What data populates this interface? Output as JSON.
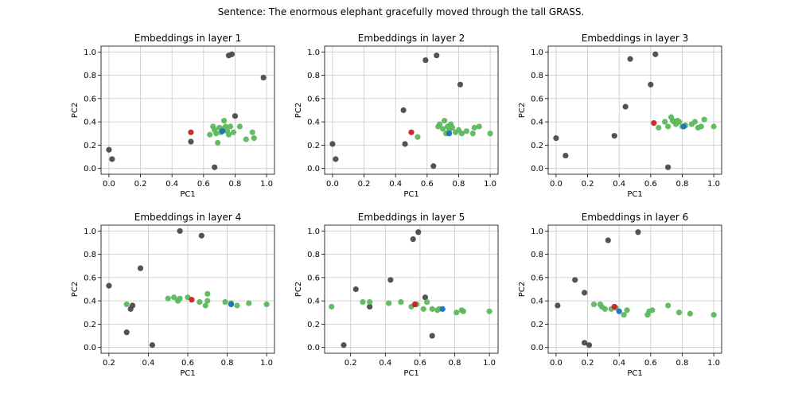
{
  "suptitle": "Sentence: The enormous elephant gracefully moved through the tall GRASS.",
  "colors": {
    "other": "#4a4a4a",
    "grass_cluster": "#5cb85c",
    "red": "#cc1f1f",
    "blue": "#1f6fbf",
    "grid": "#c8c8c8"
  },
  "chart_data": [
    {
      "type": "scatter",
      "title": "Embeddings in layer 1",
      "xlabel": "PC1",
      "ylabel": "PC2",
      "xlim": [
        -0.05,
        1.05
      ],
      "ylim": [
        -0.05,
        1.05
      ],
      "xticks": [
        "0.0",
        "0.2",
        "0.4",
        "0.6",
        "0.8",
        "1.0"
      ],
      "yticks": [
        "0.0",
        "0.2",
        "0.4",
        "0.6",
        "0.8",
        "1.0"
      ],
      "grid": true,
      "series": [
        {
          "role": "other",
          "points": [
            [
              0.0,
              0.16
            ],
            [
              0.02,
              0.08
            ],
            [
              0.52,
              0.23
            ],
            [
              0.67,
              0.01
            ],
            [
              0.76,
              0.97
            ],
            [
              0.78,
              0.98
            ],
            [
              0.8,
              0.45
            ],
            [
              0.98,
              0.78
            ]
          ]
        },
        {
          "role": "grass_cluster",
          "points": [
            [
              0.64,
              0.29
            ],
            [
              0.66,
              0.36
            ],
            [
              0.67,
              0.33
            ],
            [
              0.68,
              0.3
            ],
            [
              0.69,
              0.22
            ],
            [
              0.7,
              0.35
            ],
            [
              0.71,
              0.31
            ],
            [
              0.72,
              0.34
            ],
            [
              0.73,
              0.41
            ],
            [
              0.74,
              0.36
            ],
            [
              0.75,
              0.32
            ],
            [
              0.76,
              0.29
            ],
            [
              0.77,
              0.36
            ],
            [
              0.79,
              0.31
            ],
            [
              0.83,
              0.36
            ],
            [
              0.87,
              0.25
            ],
            [
              0.91,
              0.31
            ],
            [
              0.92,
              0.26
            ]
          ]
        },
        {
          "role": "red",
          "points": [
            [
              0.52,
              0.31
            ]
          ]
        },
        {
          "role": "blue",
          "points": [
            [
              0.72,
              0.32
            ]
          ]
        }
      ]
    },
    {
      "type": "scatter",
      "title": "Embeddings in layer 2",
      "xlabel": "PC1",
      "ylabel": "PC2",
      "xlim": [
        -0.05,
        1.05
      ],
      "ylim": [
        -0.05,
        1.05
      ],
      "xticks": [
        "0.0",
        "0.2",
        "0.4",
        "0.6",
        "0.8",
        "1.0"
      ],
      "yticks": [
        "0.0",
        "0.2",
        "0.4",
        "0.6",
        "0.8",
        "1.0"
      ],
      "grid": true,
      "series": [
        {
          "role": "other",
          "points": [
            [
              0.0,
              0.21
            ],
            [
              0.02,
              0.08
            ],
            [
              0.45,
              0.5
            ],
            [
              0.46,
              0.21
            ],
            [
              0.59,
              0.93
            ],
            [
              0.64,
              0.02
            ],
            [
              0.66,
              0.97
            ],
            [
              0.81,
              0.72
            ]
          ]
        },
        {
          "role": "grass_cluster",
          "points": [
            [
              0.54,
              0.27
            ],
            [
              0.67,
              0.36
            ],
            [
              0.68,
              0.38
            ],
            [
              0.7,
              0.34
            ],
            [
              0.71,
              0.41
            ],
            [
              0.72,
              0.3
            ],
            [
              0.73,
              0.36
            ],
            [
              0.74,
              0.33
            ],
            [
              0.75,
              0.38
            ],
            [
              0.76,
              0.35
            ],
            [
              0.78,
              0.31
            ],
            [
              0.8,
              0.33
            ],
            [
              0.82,
              0.3
            ],
            [
              0.85,
              0.32
            ],
            [
              0.89,
              0.3
            ],
            [
              0.9,
              0.35
            ],
            [
              0.93,
              0.36
            ],
            [
              1.0,
              0.3
            ]
          ]
        },
        {
          "role": "red",
          "points": [
            [
              0.5,
              0.31
            ]
          ]
        },
        {
          "role": "blue",
          "points": [
            [
              0.74,
              0.3
            ]
          ]
        }
      ]
    },
    {
      "type": "scatter",
      "title": "Embeddings in layer 3",
      "xlabel": "PC1",
      "ylabel": "PC2",
      "xlim": [
        -0.05,
        1.05
      ],
      "ylim": [
        -0.05,
        1.05
      ],
      "xticks": [
        "0.0",
        "0.2",
        "0.4",
        "0.6",
        "0.8",
        "1.0"
      ],
      "yticks": [
        "0.0",
        "0.2",
        "0.4",
        "0.6",
        "0.8",
        "1.0"
      ],
      "grid": true,
      "series": [
        {
          "role": "other",
          "points": [
            [
              0.0,
              0.26
            ],
            [
              0.06,
              0.11
            ],
            [
              0.37,
              0.28
            ],
            [
              0.44,
              0.53
            ],
            [
              0.47,
              0.94
            ],
            [
              0.6,
              0.72
            ],
            [
              0.63,
              0.98
            ],
            [
              0.71,
              0.01
            ]
          ]
        },
        {
          "role": "grass_cluster",
          "points": [
            [
              0.65,
              0.35
            ],
            [
              0.69,
              0.4
            ],
            [
              0.71,
              0.36
            ],
            [
              0.73,
              0.44
            ],
            [
              0.74,
              0.41
            ],
            [
              0.75,
              0.4
            ],
            [
              0.76,
              0.38
            ],
            [
              0.77,
              0.41
            ],
            [
              0.78,
              0.4
            ],
            [
              0.8,
              0.36
            ],
            [
              0.82,
              0.37
            ],
            [
              0.86,
              0.38
            ],
            [
              0.88,
              0.4
            ],
            [
              0.9,
              0.35
            ],
            [
              0.92,
              0.36
            ],
            [
              0.94,
              0.42
            ],
            [
              1.0,
              0.36
            ]
          ]
        },
        {
          "role": "red",
          "points": [
            [
              0.62,
              0.39
            ]
          ]
        },
        {
          "role": "blue",
          "points": [
            [
              0.81,
              0.36
            ]
          ]
        }
      ]
    },
    {
      "type": "scatter",
      "title": "Embeddings in layer 4",
      "xlabel": "PC1",
      "ylabel": "PC2",
      "xlim": [
        0.16,
        1.04
      ],
      "ylim": [
        -0.05,
        1.05
      ],
      "xticks": [
        "0.2",
        "0.4",
        "0.6",
        "0.8",
        "1.0"
      ],
      "yticks": [
        "0.0",
        "0.2",
        "0.4",
        "0.6",
        "0.8",
        "1.0"
      ],
      "grid": true,
      "series": [
        {
          "role": "other",
          "points": [
            [
              0.2,
              0.53
            ],
            [
              0.29,
              0.13
            ],
            [
              0.31,
              0.33
            ],
            [
              0.32,
              0.36
            ],
            [
              0.36,
              0.68
            ],
            [
              0.42,
              0.02
            ],
            [
              0.56,
              1.0
            ],
            [
              0.67,
              0.96
            ]
          ]
        },
        {
          "role": "grass_cluster",
          "points": [
            [
              0.29,
              0.37
            ],
            [
              0.5,
              0.42
            ],
            [
              0.53,
              0.43
            ],
            [
              0.55,
              0.4
            ],
            [
              0.56,
              0.42
            ],
            [
              0.6,
              0.43
            ],
            [
              0.66,
              0.39
            ],
            [
              0.69,
              0.36
            ],
            [
              0.7,
              0.4
            ],
            [
              0.7,
              0.46
            ],
            [
              0.79,
              0.39
            ],
            [
              0.82,
              0.38
            ],
            [
              0.85,
              0.36
            ],
            [
              0.91,
              0.38
            ],
            [
              1.0,
              0.37
            ]
          ]
        },
        {
          "role": "red",
          "points": [
            [
              0.62,
              0.41
            ]
          ]
        },
        {
          "role": "blue",
          "points": [
            [
              0.82,
              0.37
            ]
          ]
        }
      ]
    },
    {
      "type": "scatter",
      "title": "Embeddings in layer 5",
      "xlabel": "PC1",
      "ylabel": "PC2",
      "xlim": [
        0.05,
        1.05
      ],
      "ylim": [
        -0.05,
        1.05
      ],
      "xticks": [
        "0.2",
        "0.4",
        "0.6",
        "0.8",
        "1.0"
      ],
      "yticks": [
        "0.0",
        "0.2",
        "0.4",
        "0.6",
        "0.8",
        "1.0"
      ],
      "grid": true,
      "series": [
        {
          "role": "other",
          "points": [
            [
              0.16,
              0.02
            ],
            [
              0.23,
              0.5
            ],
            [
              0.31,
              0.35
            ],
            [
              0.43,
              0.58
            ],
            [
              0.56,
              0.93
            ],
            [
              0.59,
              0.99
            ],
            [
              0.63,
              0.43
            ],
            [
              0.67,
              0.1
            ]
          ]
        },
        {
          "role": "grass_cluster",
          "points": [
            [
              0.09,
              0.35
            ],
            [
              0.27,
              0.39
            ],
            [
              0.31,
              0.39
            ],
            [
              0.42,
              0.38
            ],
            [
              0.49,
              0.39
            ],
            [
              0.55,
              0.35
            ],
            [
              0.58,
              0.37
            ],
            [
              0.62,
              0.33
            ],
            [
              0.64,
              0.39
            ],
            [
              0.67,
              0.33
            ],
            [
              0.7,
              0.32
            ],
            [
              0.71,
              0.33
            ],
            [
              0.81,
              0.3
            ],
            [
              0.84,
              0.32
            ],
            [
              0.85,
              0.31
            ],
            [
              1.0,
              0.31
            ]
          ]
        },
        {
          "role": "red",
          "points": [
            [
              0.57,
              0.37
            ]
          ]
        },
        {
          "role": "blue",
          "points": [
            [
              0.73,
              0.33
            ]
          ]
        }
      ]
    },
    {
      "type": "scatter",
      "title": "Embeddings in layer 6",
      "xlabel": "PC1",
      "ylabel": "PC2",
      "xlim": [
        -0.05,
        1.05
      ],
      "ylim": [
        -0.05,
        1.05
      ],
      "xticks": [
        "0.0",
        "0.2",
        "0.4",
        "0.6",
        "0.8",
        "1.0"
      ],
      "yticks": [
        "0.0",
        "0.2",
        "0.4",
        "0.6",
        "0.8",
        "1.0"
      ],
      "grid": true,
      "series": [
        {
          "role": "other",
          "points": [
            [
              0.01,
              0.36
            ],
            [
              0.12,
              0.58
            ],
            [
              0.18,
              0.47
            ],
            [
              0.18,
              0.04
            ],
            [
              0.21,
              0.02
            ],
            [
              0.33,
              0.92
            ],
            [
              0.52,
              0.99
            ]
          ]
        },
        {
          "role": "grass_cluster",
          "points": [
            [
              0.24,
              0.37
            ],
            [
              0.28,
              0.37
            ],
            [
              0.29,
              0.35
            ],
            [
              0.31,
              0.33
            ],
            [
              0.35,
              0.33
            ],
            [
              0.38,
              0.34
            ],
            [
              0.43,
              0.28
            ],
            [
              0.45,
              0.32
            ],
            [
              0.58,
              0.28
            ],
            [
              0.59,
              0.31
            ],
            [
              0.61,
              0.32
            ],
            [
              0.71,
              0.36
            ],
            [
              0.78,
              0.3
            ],
            [
              0.85,
              0.29
            ],
            [
              1.0,
              0.28
            ]
          ]
        },
        {
          "role": "red",
          "points": [
            [
              0.37,
              0.35
            ]
          ]
        },
        {
          "role": "blue",
          "points": [
            [
              0.4,
              0.31
            ]
          ]
        }
      ]
    }
  ]
}
